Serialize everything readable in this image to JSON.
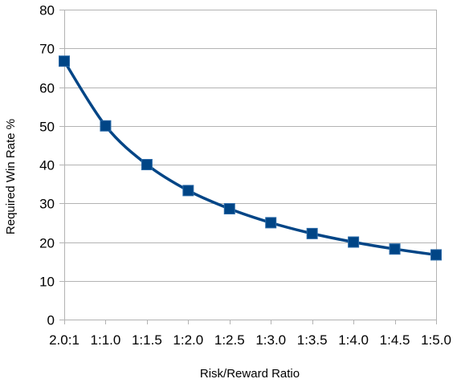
{
  "chart_data": {
    "type": "line",
    "title": "",
    "xlabel": "Risk/Reward Ratio",
    "ylabel": "Required Win Rate %",
    "categories": [
      "2.0:1",
      "1:1.0",
      "1:1.5",
      "1:2.0",
      "1:2.5",
      "1:3.0",
      "1:3.5",
      "1:4.0",
      "1:4.5",
      "1:5.0"
    ],
    "series": [
      {
        "values": [
          66.7,
          50.0,
          40.0,
          33.3,
          28.6,
          25.0,
          22.2,
          20.0,
          18.2,
          16.7
        ],
        "color": "#004586",
        "marker": "square",
        "smooth": true
      }
    ],
    "ylim": [
      0,
      80
    ],
    "yticks": [
      0,
      10,
      20,
      30,
      40,
      50,
      60,
      70,
      80
    ],
    "grid": true,
    "legend": "none"
  }
}
